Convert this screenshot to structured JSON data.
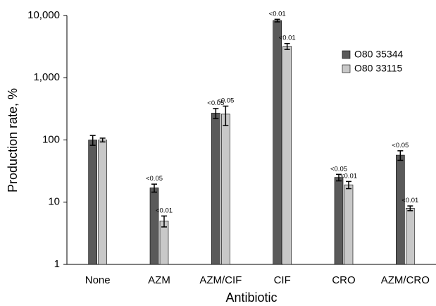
{
  "chart_data": {
    "type": "bar",
    "xlabel": "Antibiotic",
    "ylabel": "Production rate, %",
    "yscale": "log",
    "ylim": [
      1,
      10000
    ],
    "yticks": [
      1,
      10,
      100,
      1000,
      10000
    ],
    "ytick_labels": [
      "1",
      "10",
      "100",
      "1,000",
      "10,000"
    ],
    "categories": [
      "None",
      "AZM",
      "AZM/CIF",
      "CIF",
      "CRO",
      "AZM/CRO"
    ],
    "legend_position": "top-right",
    "series": [
      {
        "name": "O80 35344",
        "color": "#5a5a5a",
        "values": [
          100,
          17,
          270,
          8300,
          25,
          57
        ],
        "errors": [
          18,
          2.5,
          50,
          400,
          3,
          10
        ],
        "annotations": [
          "",
          "<0.05",
          "<0.05",
          "<0.01",
          "<0.05",
          "<0.05"
        ]
      },
      {
        "name": "O80 33115",
        "color": "#c8c8c8",
        "values": [
          100,
          5,
          260,
          3200,
          19,
          8
        ],
        "errors": [
          7,
          1,
          90,
          350,
          2.5,
          0.7
        ],
        "annotations": [
          "",
          "<0.01",
          "<0.05",
          "<0.01",
          "<0.01",
          "<0.01"
        ]
      }
    ]
  }
}
